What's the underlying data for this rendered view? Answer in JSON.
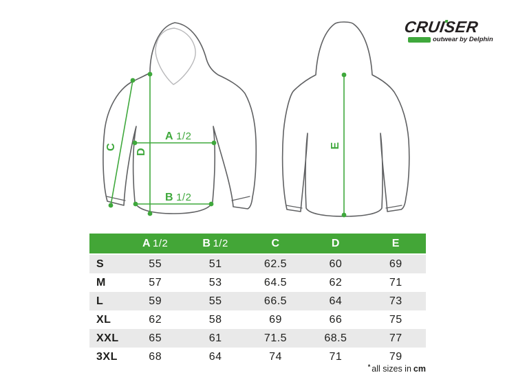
{
  "brand": {
    "name": "CRUISER",
    "tagline": "outwear by Delphin"
  },
  "diagram": {
    "front": {
      "label_a": "A",
      "label_a_fraction": "1/2",
      "label_b": "B",
      "label_b_fraction": "1/2",
      "label_c": "C",
      "label_d": "D"
    },
    "back": {
      "label_e": "E"
    }
  },
  "table": {
    "headers": [
      {
        "letter": "",
        "fraction": ""
      },
      {
        "letter": "A",
        "fraction": "1/2"
      },
      {
        "letter": "B",
        "fraction": "1/2"
      },
      {
        "letter": "C",
        "fraction": ""
      },
      {
        "letter": "D",
        "fraction": ""
      },
      {
        "letter": "E",
        "fraction": ""
      }
    ],
    "rows": [
      {
        "size": "S",
        "values": [
          "55",
          "51",
          "62.5",
          "60",
          "69"
        ]
      },
      {
        "size": "M",
        "values": [
          "57",
          "53",
          "64.5",
          "62",
          "71"
        ]
      },
      {
        "size": "L",
        "values": [
          "59",
          "55",
          "66.5",
          "64",
          "73"
        ]
      },
      {
        "size": "XL",
        "values": [
          "62",
          "58",
          "69",
          "66",
          "75"
        ]
      },
      {
        "size": "XXL",
        "values": [
          "65",
          "61",
          "71.5",
          "68.5",
          "77"
        ]
      },
      {
        "size": "3XL",
        "values": [
          "68",
          "64",
          "74",
          "71",
          "79"
        ]
      }
    ]
  },
  "footnote": {
    "marker": "*",
    "text": "all sizes in",
    "unit": "cm"
  },
  "colors": {
    "accent_green": "#3FA83C",
    "header_green": "#43A637",
    "outline_gray": "#5F6062",
    "hood_inner_gray": "#B7B7B9",
    "row_alt": "#E9E9E9",
    "text_dark": "#1D1D1B"
  }
}
